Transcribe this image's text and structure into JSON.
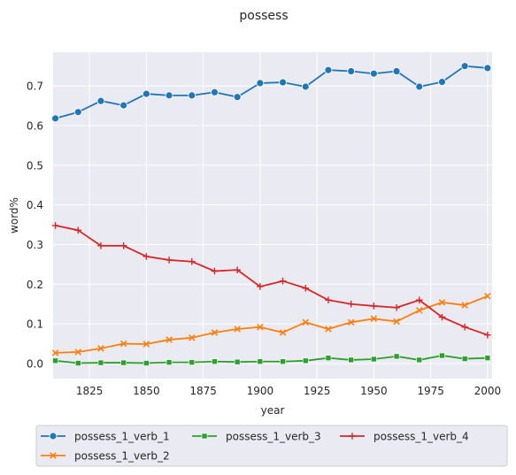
{
  "chart_data": {
    "type": "line",
    "title": "possess",
    "xlabel": "year",
    "ylabel": "word%",
    "xlim": [
      1809,
      2002
    ],
    "ylim": [
      -0.038,
      0.785
    ],
    "xticks": [
      1825,
      1850,
      1875,
      1900,
      1925,
      1950,
      1975,
      2000
    ],
    "yticks": [
      0.0,
      0.1,
      0.2,
      0.3,
      0.4,
      0.5,
      0.6,
      0.7
    ],
    "ytick_labels": [
      "0.0",
      "0.1",
      "0.2",
      "0.3",
      "0.4",
      "0.5",
      "0.6",
      "0.7"
    ],
    "grid": true,
    "legend_position": "bottom-center",
    "x": [
      1810,
      1820,
      1830,
      1840,
      1850,
      1860,
      1870,
      1880,
      1890,
      1900,
      1910,
      1920,
      1930,
      1940,
      1950,
      1960,
      1970,
      1980,
      1990,
      2000
    ],
    "series": [
      {
        "name": "possess_1_verb_1",
        "color": "#1f77b4",
        "marker": "circle",
        "values": [
          0.618,
          0.634,
          0.662,
          0.651,
          0.68,
          0.676,
          0.676,
          0.684,
          0.672,
          0.707,
          0.709,
          0.698,
          0.74,
          0.737,
          0.731,
          0.737,
          0.698,
          0.71,
          0.75,
          0.745
        ]
      },
      {
        "name": "possess_1_verb_2",
        "color": "#ff7f0e",
        "marker": "x",
        "values": [
          0.027,
          0.029,
          0.038,
          0.05,
          0.049,
          0.06,
          0.065,
          0.078,
          0.087,
          0.092,
          0.078,
          0.104,
          0.087,
          0.104,
          0.113,
          0.106,
          0.134,
          0.154,
          0.147,
          0.17
        ]
      },
      {
        "name": "possess_1_verb_3",
        "color": "#2ca02c",
        "marker": "square",
        "values": [
          0.007,
          0.001,
          0.002,
          0.002,
          0.001,
          0.003,
          0.003,
          0.005,
          0.004,
          0.005,
          0.005,
          0.007,
          0.014,
          0.009,
          0.011,
          0.018,
          0.009,
          0.02,
          0.012,
          0.014
        ]
      },
      {
        "name": "possess_1_verb_4",
        "color": "#d62728",
        "marker": "plus",
        "values": [
          0.348,
          0.336,
          0.297,
          0.297,
          0.27,
          0.261,
          0.257,
          0.233,
          0.236,
          0.194,
          0.208,
          0.19,
          0.16,
          0.15,
          0.145,
          0.141,
          0.16,
          0.117,
          0.092,
          0.072
        ]
      }
    ]
  }
}
